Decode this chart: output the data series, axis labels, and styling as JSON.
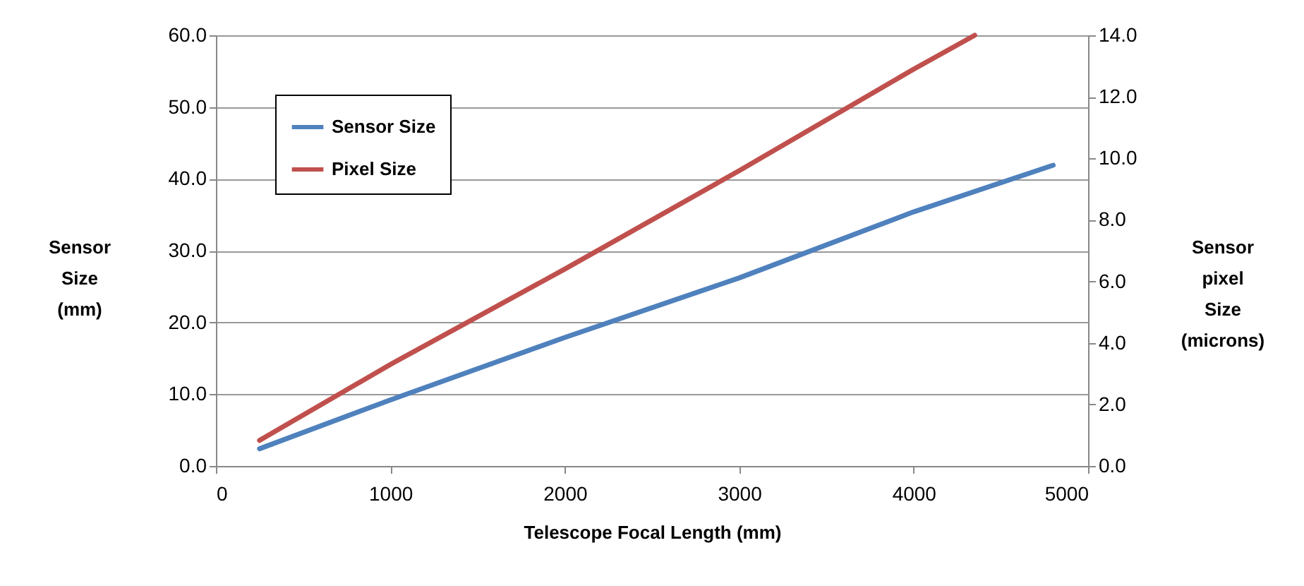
{
  "chart_data": {
    "type": "line",
    "xlabel": "Telescope Focal Length (mm)",
    "ylabel": "Sensor Size (mm)",
    "y2label": "Sensor pixel Size (microns)",
    "x": [
      250,
      1000,
      2000,
      3000,
      4000,
      4800
    ],
    "series": [
      {
        "name": "Sensor Size",
        "color": "#4f81bd",
        "values": [
          2.4,
          9.2,
          17.9,
          26.2,
          35.4,
          41.9
        ]
      },
      {
        "name": "Pixel Size",
        "color": "#c0504d",
        "axis": "y2",
        "x": [
          250,
          1000,
          2000,
          3000,
          4000,
          4350
        ],
        "values": [
          0.83,
          3.3,
          6.4,
          9.6,
          12.9,
          14.0
        ]
      }
    ],
    "xlim": [
      0,
      5000
    ],
    "xticks": [
      0,
      1000,
      2000,
      3000,
      4000,
      5000
    ],
    "ylim": [
      0,
      60
    ],
    "yticks": [
      {
        "value": 0,
        "label": "0.0"
      },
      {
        "value": 10,
        "label": "10.0"
      },
      {
        "value": 20,
        "label": "20.0"
      },
      {
        "value": 30,
        "label": "30.0"
      },
      {
        "value": 40,
        "label": "40.0"
      },
      {
        "value": 50,
        "label": "50.0"
      },
      {
        "value": 60,
        "label": "60.0"
      }
    ],
    "y2lim": [
      0,
      14
    ],
    "y2ticks": [
      {
        "value": 0,
        "label": "0.0"
      },
      {
        "value": 2,
        "label": "2.0"
      },
      {
        "value": 4,
        "label": "4.0"
      },
      {
        "value": 6,
        "label": "6.0"
      },
      {
        "value": 8,
        "label": "8.0"
      },
      {
        "value": 10,
        "label": "10.0"
      },
      {
        "value": 12,
        "label": "12.0"
      },
      {
        "value": 14,
        "label": "14.0"
      }
    ],
    "grid": "y",
    "legend": "top left",
    "marker": "none",
    "line_style": "solid"
  }
}
